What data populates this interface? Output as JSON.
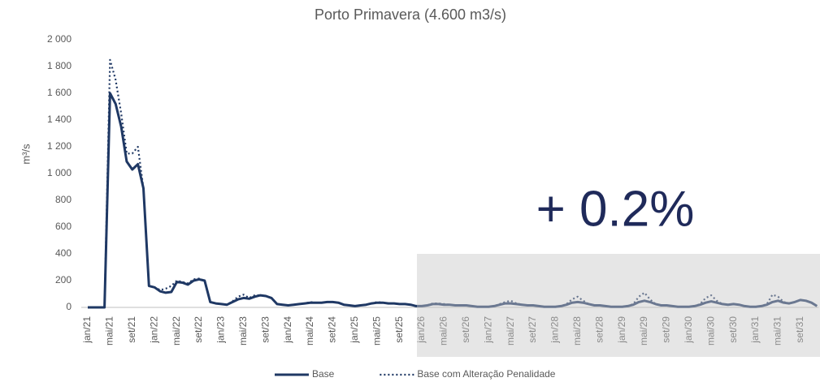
{
  "chart_data": {
    "type": "line",
    "title": "Porto Primavera (4.600 m3/s)",
    "y_label": "m³/s",
    "annotation": "+ 0.2%",
    "categories": [
      "jan/21",
      null,
      null,
      null,
      "mai/21",
      null,
      null,
      null,
      "set/21",
      null,
      null,
      null,
      "jan/22",
      null,
      null,
      null,
      "mai/22",
      null,
      null,
      null,
      "set/22",
      null,
      null,
      null,
      "jan/23",
      null,
      null,
      null,
      "mai/23",
      null,
      null,
      null,
      "set/23",
      null,
      null,
      null,
      "jan/24",
      null,
      null,
      null,
      "mai/24",
      null,
      null,
      null,
      "set/24",
      null,
      null,
      null,
      "jan/25",
      null,
      null,
      null,
      "mai/25",
      null,
      null,
      null,
      "set/25",
      null,
      null,
      null,
      "jan/26",
      null,
      null,
      null,
      "mai/26",
      null,
      null,
      null,
      "set/26",
      null,
      null,
      null,
      "jan/27",
      null,
      null,
      null,
      "mai/27",
      null,
      null,
      null,
      "set/27",
      null,
      null,
      null,
      "jan/28",
      null,
      null,
      null,
      "mai/28",
      null,
      null,
      null,
      "set/28",
      null,
      null,
      null,
      "jan/29",
      null,
      null,
      null,
      "mai/29",
      null,
      null,
      null,
      "set/29",
      null,
      null,
      null,
      "jan/30",
      null,
      null,
      null,
      "mai/30",
      null,
      null,
      null,
      "set/30",
      null,
      null,
      null,
      "jan/31",
      null,
      null,
      null,
      "mai/31",
      null,
      null,
      null,
      "set/31",
      null,
      null,
      null
    ],
    "series": [
      {
        "name": "Base",
        "color": "#1f3864",
        "dash": "solid",
        "values": [
          0,
          0,
          0,
          0,
          1600,
          1520,
          1350,
          1090,
          1030,
          1070,
          890,
          160,
          150,
          120,
          110,
          115,
          190,
          185,
          170,
          200,
          210,
          200,
          40,
          30,
          25,
          20,
          40,
          60,
          70,
          65,
          80,
          90,
          85,
          70,
          25,
          20,
          15,
          20,
          25,
          30,
          35,
          35,
          35,
          40,
          40,
          35,
          20,
          15,
          10,
          15,
          20,
          30,
          35,
          35,
          30,
          30,
          25,
          25,
          20,
          10,
          10,
          15,
          25,
          25,
          20,
          20,
          15,
          15,
          15,
          10,
          5,
          5,
          5,
          10,
          20,
          30,
          30,
          25,
          20,
          15,
          15,
          10,
          5,
          5,
          5,
          10,
          20,
          35,
          40,
          35,
          25,
          15,
          15,
          10,
          5,
          5,
          5,
          10,
          20,
          40,
          50,
          40,
          25,
          15,
          15,
          10,
          5,
          5,
          5,
          10,
          20,
          35,
          45,
          35,
          25,
          20,
          25,
          20,
          10,
          5,
          5,
          10,
          20,
          40,
          50,
          35,
          30,
          40,
          55,
          50,
          35,
          10
        ]
      },
      {
        "name": "Base com Alteração Penalidade",
        "color": "#1f3864",
        "dash": "dotted",
        "values": [
          0,
          0,
          0,
          0,
          1850,
          1700,
          1450,
          1150,
          1150,
          1200,
          890,
          160,
          150,
          130,
          140,
          160,
          200,
          190,
          180,
          210,
          215,
          200,
          40,
          30,
          25,
          20,
          45,
          80,
          95,
          70,
          90,
          90,
          85,
          70,
          25,
          20,
          15,
          20,
          25,
          30,
          40,
          35,
          35,
          40,
          40,
          35,
          20,
          15,
          10,
          15,
          20,
          30,
          40,
          35,
          30,
          30,
          25,
          25,
          20,
          10,
          10,
          15,
          30,
          30,
          25,
          20,
          15,
          15,
          15,
          10,
          5,
          5,
          5,
          10,
          25,
          40,
          50,
          30,
          20,
          15,
          15,
          10,
          5,
          5,
          5,
          10,
          25,
          60,
          80,
          50,
          25,
          15,
          15,
          10,
          5,
          5,
          5,
          10,
          25,
          80,
          110,
          60,
          25,
          15,
          15,
          10,
          5,
          5,
          5,
          10,
          25,
          70,
          90,
          50,
          25,
          20,
          25,
          20,
          10,
          5,
          5,
          10,
          25,
          95,
          80,
          40,
          30,
          40,
          55,
          50,
          35,
          10
        ]
      }
    ],
    "ylim": [
      0,
      2000
    ],
    "yticks": [
      0,
      200,
      400,
      600,
      800,
      {
        "value": 1000,
        "label": "1 000"
      },
      {
        "value": 1200,
        "label": "1 200"
      },
      {
        "value": 1400,
        "label": "1 400"
      },
      {
        "value": 1600,
        "label": "1 600"
      },
      {
        "value": 1800,
        "label": "1 800"
      },
      {
        "value": 2000,
        "label": "2 000"
      }
    ],
    "legend": "bottom"
  }
}
